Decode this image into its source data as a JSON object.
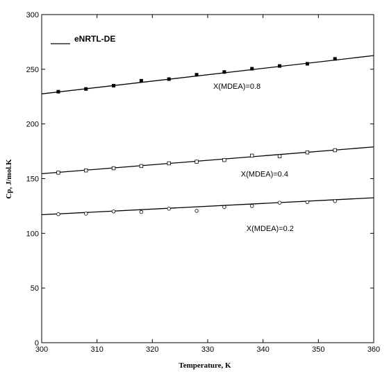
{
  "chart_data": {
    "type": "scatter",
    "xlabel": "Temperature, K",
    "ylabel": "Cp, J/mol.K",
    "xlim": [
      300,
      360
    ],
    "ylim": [
      0,
      300
    ],
    "xticks": [
      300,
      310,
      320,
      330,
      340,
      350,
      360
    ],
    "yticks": [
      0,
      50,
      100,
      150,
      200,
      250,
      300
    ],
    "grid": false,
    "legend": {
      "position": "top-left",
      "entries": [
        {
          "label": "eNRTL-DE",
          "style": "line"
        }
      ]
    },
    "model_lines": [
      {
        "x": [
          300,
          360
        ],
        "y": [
          227.5,
          262.5
        ]
      },
      {
        "x": [
          300,
          360
        ],
        "y": [
          154.5,
          179.0
        ]
      },
      {
        "x": [
          300,
          360
        ],
        "y": [
          117.0,
          132.5
        ]
      }
    ],
    "series": [
      {
        "marker": "filled-square",
        "annotation": "X(MDEA)=0.8",
        "x": [
          303,
          308,
          313,
          318,
          323,
          328,
          333,
          338,
          343,
          348,
          353
        ],
        "y": [
          229.5,
          232,
          235,
          239.5,
          241,
          245,
          247.5,
          250.5,
          253,
          255,
          259.5
        ]
      },
      {
        "marker": "open-square",
        "annotation": "X(MDEA)=0.4",
        "x": [
          303,
          308,
          313,
          318,
          323,
          328,
          333,
          338,
          343,
          348,
          353
        ],
        "y": [
          155.5,
          157.5,
          159.5,
          161.5,
          164,
          165.5,
          167,
          171,
          170.5,
          174,
          176
        ]
      },
      {
        "marker": "open-circle",
        "annotation": "X(MDEA)=0.2",
        "x": [
          303,
          308,
          313,
          318,
          323,
          328,
          333,
          338,
          343,
          348,
          353
        ],
        "y": [
          117.5,
          118,
          120,
          119.5,
          122.5,
          120.5,
          124,
          125,
          128,
          128.5,
          129.5
        ]
      }
    ],
    "annotations_pos": [
      {
        "text": "X(MDEA)=0.8",
        "x": 331,
        "y": 232
      },
      {
        "text": "X(MDEA)=0.4",
        "x": 336,
        "y": 152
      },
      {
        "text": "X(MDEA)=0.2",
        "x": 337,
        "y": 102
      }
    ]
  }
}
